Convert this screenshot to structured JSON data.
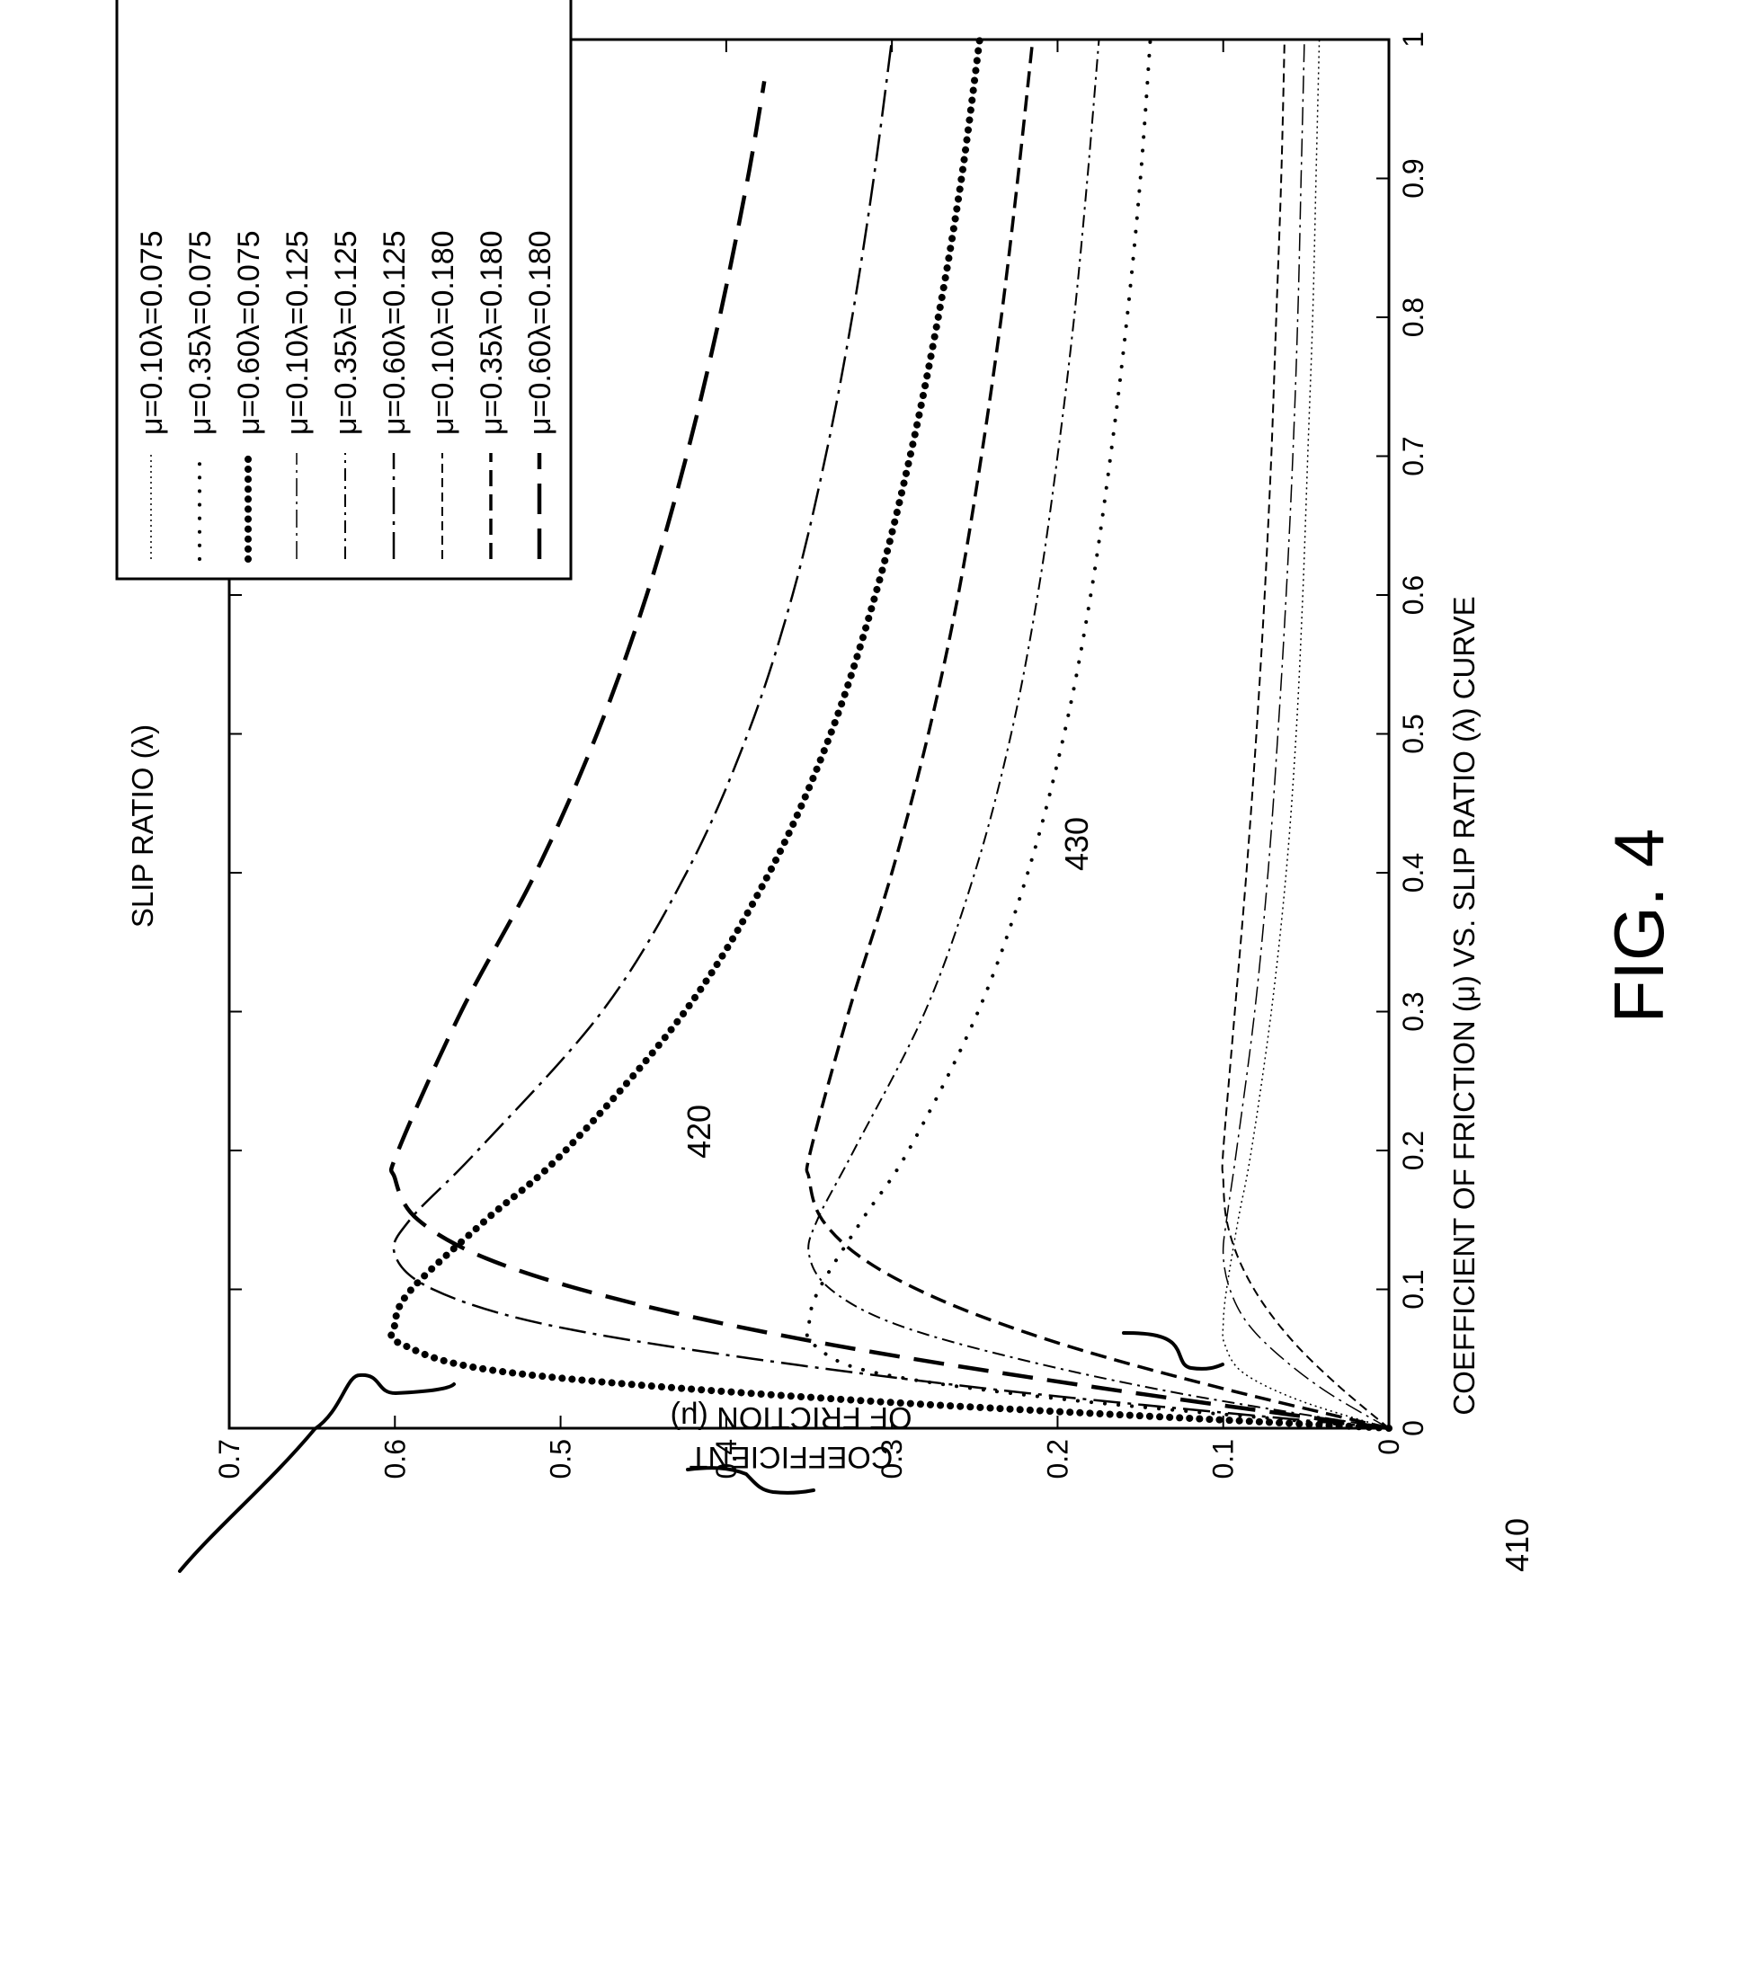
{
  "chart_data": {
    "type": "line",
    "title": "COEFFICIENT OF FRICTION (μ) VS. SLIP RATIO (λ) CURVE",
    "xlabel": "SLIP RATIO (λ)",
    "ylabel_line1": "COEFFICIENT",
    "ylabel_line2": "OF FRICTION (μ)",
    "figure_label": "FIG. 4",
    "xlim": [
      0,
      1
    ],
    "ylim": [
      0,
      0.7
    ],
    "x_ticks": [
      "0",
      "0.1",
      "0.2",
      "0.3",
      "0.4",
      "0.5",
      "0.6",
      "0.7",
      "0.8",
      "0.9",
      "1"
    ],
    "y_ticks": [
      "0",
      "0.1",
      "0.2",
      "0.3",
      "0.4",
      "0.5",
      "0.6",
      "0.7"
    ],
    "grid": false,
    "legend_position": "top-right",
    "orientation": "rotated 90° counter-clockwise on the page",
    "series": [
      {
        "name": "μ=0.10λ=0.075",
        "mu": 0.1,
        "lambda_peak": 0.075,
        "style": "dotted-thin",
        "x": [
          0,
          0.02,
          0.04,
          0.06,
          0.075,
          0.1,
          0.15,
          0.2,
          0.3,
          0.4,
          0.5,
          0.6,
          0.7,
          0.8,
          0.9,
          1.0
        ],
        "y": [
          0,
          0.054,
          0.088,
          0.099,
          0.1,
          0.098,
          0.091,
          0.083,
          0.071,
          0.062,
          0.056,
          0.052,
          0.049,
          0.046,
          0.044,
          0.042
        ]
      },
      {
        "name": "μ=0.35λ=0.075",
        "mu": 0.35,
        "lambda_peak": 0.075,
        "style": "dotted-sparse",
        "x": [
          0,
          0.02,
          0.04,
          0.06,
          0.075,
          0.1,
          0.15,
          0.2,
          0.3,
          0.4,
          0.5,
          0.6,
          0.7,
          0.8,
          0.9,
          1.0
        ],
        "y": [
          0,
          0.19,
          0.31,
          0.347,
          0.35,
          0.344,
          0.318,
          0.29,
          0.248,
          0.218,
          0.196,
          0.18,
          0.168,
          0.158,
          0.15,
          0.144
        ]
      },
      {
        "name": "μ=0.60λ=0.075",
        "mu": 0.6,
        "lambda_peak": 0.075,
        "style": "dotted-heavy",
        "x": [
          0,
          0.02,
          0.04,
          0.06,
          0.075,
          0.1,
          0.15,
          0.2,
          0.3,
          0.4,
          0.5,
          0.6,
          0.7,
          0.8,
          0.9,
          1.0
        ],
        "y": [
          0,
          0.32,
          0.53,
          0.595,
          0.6,
          0.59,
          0.545,
          0.497,
          0.425,
          0.374,
          0.337,
          0.31,
          0.289,
          0.272,
          0.258,
          0.247
        ]
      },
      {
        "name": "μ=0.10λ=0.125",
        "mu": 0.1,
        "lambda_peak": 0.125,
        "style": "long-dash-dot-thin",
        "x": [
          0,
          0.025,
          0.05,
          0.075,
          0.1,
          0.125,
          0.15,
          0.2,
          0.3,
          0.4,
          0.5,
          0.6,
          0.7,
          0.8,
          0.9,
          1.0
        ],
        "y": [
          0,
          0.036,
          0.064,
          0.085,
          0.096,
          0.1,
          0.098,
          0.092,
          0.081,
          0.073,
          0.067,
          0.062,
          0.058,
          0.055,
          0.053,
          0.051
        ]
      },
      {
        "name": "μ=0.35λ=0.125",
        "mu": 0.35,
        "lambda_peak": 0.125,
        "style": "dash-dot",
        "x": [
          0,
          0.025,
          0.05,
          0.075,
          0.1,
          0.125,
          0.15,
          0.2,
          0.3,
          0.4,
          0.5,
          0.6,
          0.7,
          0.8,
          0.9,
          1.0
        ],
        "y": [
          0,
          0.126,
          0.224,
          0.298,
          0.337,
          0.35,
          0.345,
          0.323,
          0.28,
          0.25,
          0.228,
          0.212,
          0.2,
          0.19,
          0.182,
          0.175
        ]
      },
      {
        "name": "μ=0.60λ=0.125",
        "mu": 0.6,
        "lambda_peak": 0.125,
        "style": "long-dash-dot",
        "x": [
          0,
          0.025,
          0.05,
          0.075,
          0.1,
          0.125,
          0.15,
          0.2,
          0.3,
          0.4,
          0.5,
          0.6,
          0.7,
          0.8,
          0.9,
          1.0
        ],
        "y": [
          0,
          0.216,
          0.384,
          0.51,
          0.577,
          0.6,
          0.591,
          0.55,
          0.475,
          0.424,
          0.387,
          0.36,
          0.34,
          0.324,
          0.311,
          0.3
        ]
      },
      {
        "name": "μ=0.10λ=0.180",
        "mu": 0.1,
        "lambda_peak": 0.18,
        "style": "short-dash-thin",
        "x": [
          0,
          0.03,
          0.06,
          0.09,
          0.12,
          0.15,
          0.18,
          0.2,
          0.3,
          0.4,
          0.5,
          0.6,
          0.7,
          0.8,
          0.9,
          1.0
        ],
        "y": [
          0,
          0.03,
          0.056,
          0.076,
          0.09,
          0.098,
          0.1,
          0.1,
          0.093,
          0.086,
          0.08,
          0.075,
          0.071,
          0.068,
          0.065,
          0.063
        ]
      },
      {
        "name": "μ=0.35λ=0.180",
        "mu": 0.35,
        "lambda_peak": 0.18,
        "style": "medium-dash",
        "x": [
          0,
          0.03,
          0.06,
          0.09,
          0.12,
          0.15,
          0.18,
          0.2,
          0.3,
          0.4,
          0.5,
          0.6,
          0.7,
          0.8,
          0.9,
          1.0
        ],
        "y": [
          0,
          0.105,
          0.196,
          0.266,
          0.315,
          0.342,
          0.35,
          0.349,
          0.326,
          0.3,
          0.278,
          0.26,
          0.246,
          0.234,
          0.224,
          0.215
        ]
      },
      {
        "name": "μ=0.60λ=0.180",
        "mu": 0.6,
        "lambda_peak": 0.18,
        "style": "long-dash-heavy",
        "x": [
          0,
          0.03,
          0.06,
          0.09,
          0.12,
          0.15,
          0.18,
          0.2,
          0.3,
          0.4,
          0.5,
          0.6,
          0.7,
          0.8,
          0.9,
          0.97
        ],
        "y": [
          0,
          0.18,
          0.336,
          0.456,
          0.54,
          0.586,
          0.6,
          0.598,
          0.56,
          0.515,
          0.478,
          0.448,
          0.424,
          0.404,
          0.387,
          0.377
        ]
      }
    ],
    "annotations": [
      {
        "label": "410",
        "points_to": "peak region μ≈0.6"
      },
      {
        "label": "420",
        "points_to": "peak region μ≈0.35"
      },
      {
        "label": "430",
        "points_to": "peak region μ≈0.1"
      }
    ]
  }
}
